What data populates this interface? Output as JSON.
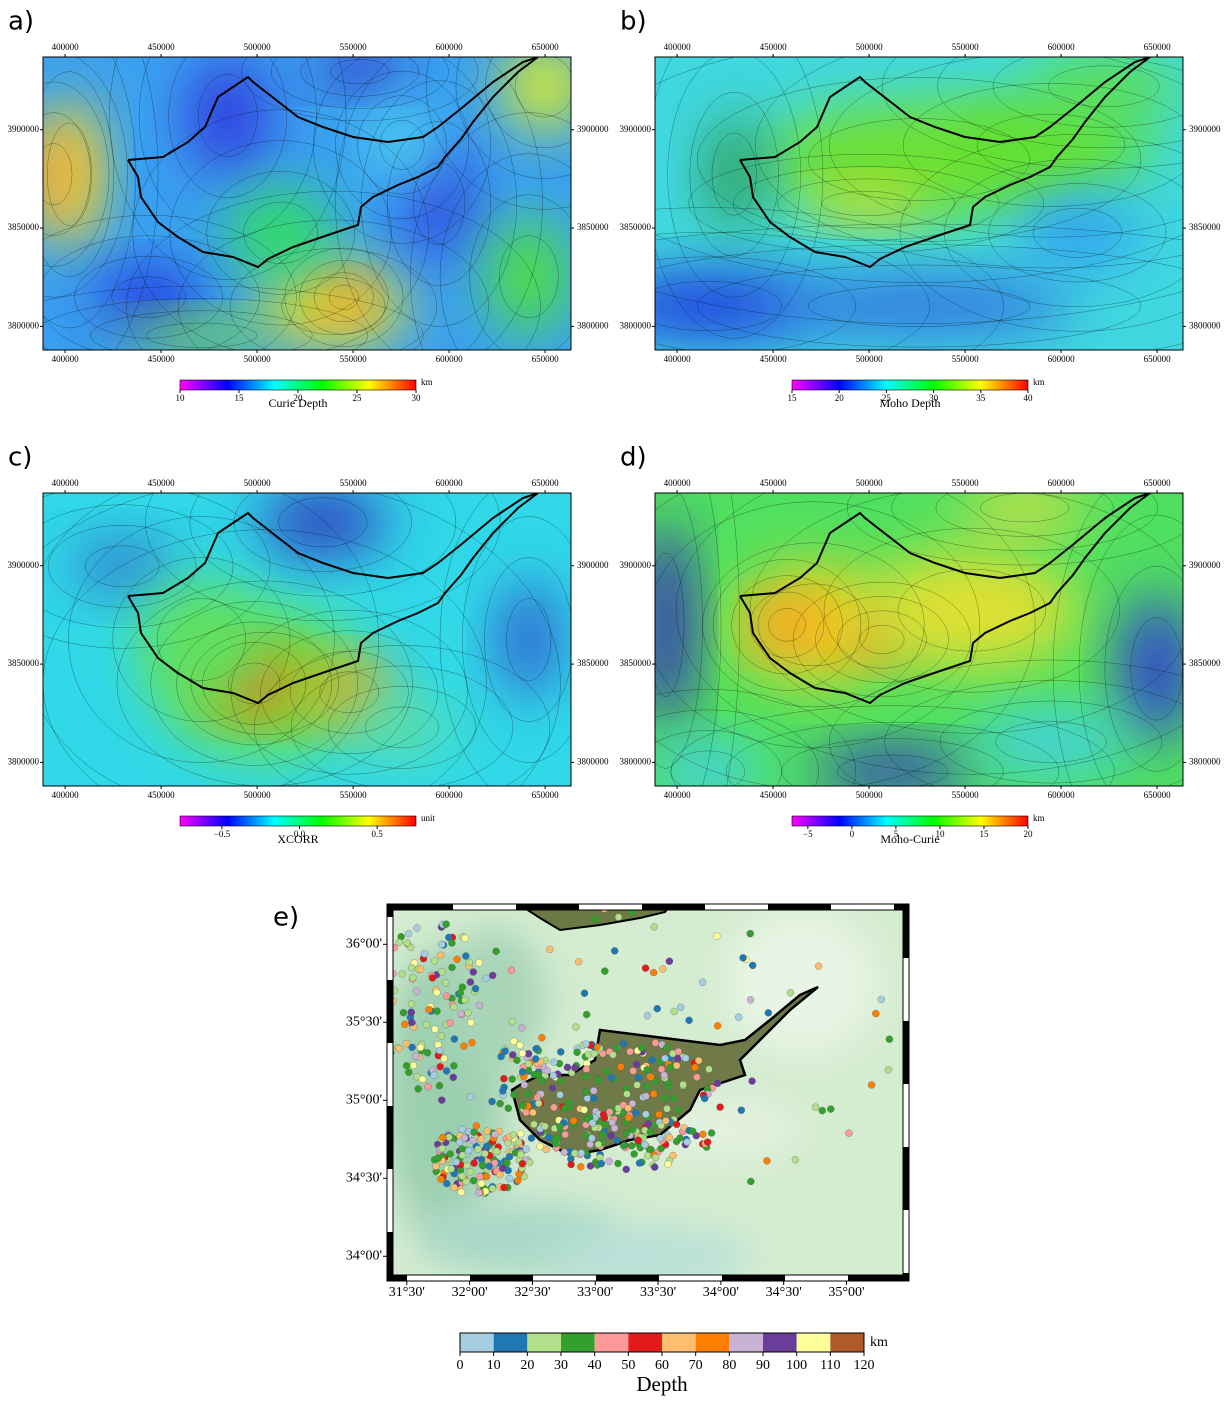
{
  "panels": [
    {
      "label": "a)",
      "xlim": [
        388500,
        663500
      ],
      "ylim": [
        3788000,
        3937000
      ],
      "xticks": [
        400000,
        450000,
        500000,
        550000,
        600000,
        650000
      ],
      "yticks": [
        3800000,
        3850000,
        3900000
      ],
      "colorbar": {
        "title": "Curie Depth",
        "unit": "km",
        "lim": [
          10,
          30
        ],
        "ticks": [
          10,
          15,
          20,
          25,
          30
        ],
        "colors": [
          "#ff00ff",
          "#0000ff",
          "#00ffff",
          "#00ff00",
          "#ffff00",
          "#ff0000"
        ]
      }
    },
    {
      "label": "b)",
      "xlim": [
        388500,
        663500
      ],
      "ylim": [
        3788000,
        3937000
      ],
      "xticks": [
        400000,
        450000,
        500000,
        550000,
        600000,
        650000
      ],
      "yticks": [
        3800000,
        3850000,
        3900000
      ],
      "colorbar": {
        "title": "Moho Depth",
        "unit": "km",
        "lim": [
          15,
          40
        ],
        "ticks": [
          15,
          20,
          25,
          30,
          35,
          40
        ],
        "colors": [
          "#ff00ff",
          "#0000ff",
          "#00ffff",
          "#00ff00",
          "#ffff00",
          "#ff0000"
        ]
      }
    },
    {
      "label": "c)",
      "xlim": [
        388500,
        663500
      ],
      "ylim": [
        3788000,
        3937000
      ],
      "xticks": [
        400000,
        450000,
        500000,
        550000,
        600000,
        650000
      ],
      "yticks": [
        3800000,
        3850000,
        3900000
      ],
      "colorbar": {
        "title": "XCORR",
        "unit": "unit",
        "lim": [
          -0.77,
          0.75
        ],
        "ticks": [
          {
            "value": -0.5,
            "label": "−0.5"
          },
          {
            "value": 0,
            "label": "0.0"
          },
          0.5
        ],
        "colors": [
          "#ff00ff",
          "#0000ff",
          "#00ffff",
          "#00ff00",
          "#ffff00",
          "#ff0000"
        ]
      }
    },
    {
      "label": "d)",
      "xlim": [
        388500,
        663500
      ],
      "ylim": [
        3788000,
        3937000
      ],
      "xticks": [
        400000,
        450000,
        500000,
        550000,
        600000,
        650000
      ],
      "yticks": [
        3800000,
        3850000,
        3900000
      ],
      "colorbar": {
        "title": "Moho-Curie",
        "unit": "km",
        "lim": [
          -6.8,
          20
        ],
        "ticks": [
          {
            "value": -5,
            "label": "−5"
          },
          0,
          5,
          10,
          15,
          20
        ],
        "colors": [
          "#ff00ff",
          "#0000ff",
          "#00ffff",
          "#00ff00",
          "#ffff00",
          "#ff0000"
        ]
      }
    }
  ],
  "map_e": {
    "label": "e)",
    "xlim": [
      31.39,
      35.45
    ],
    "ylim": [
      33.88,
      36.22
    ],
    "xticks": [
      {
        "value": 31.5,
        "label": "31°30'"
      },
      {
        "value": 32,
        "label": "32°00'"
      },
      {
        "value": 32.5,
        "label": "32°30'"
      },
      {
        "value": 33,
        "label": "33°00'"
      },
      {
        "value": 33.5,
        "label": "33°30'"
      },
      {
        "value": 34,
        "label": "34°00'"
      },
      {
        "value": 34.5,
        "label": "34°30'"
      },
      {
        "value": 35,
        "label": "35°00'"
      }
    ],
    "yticks": [
      {
        "value": 34,
        "label": "34°00'"
      },
      {
        "value": 34.5,
        "label": "34°30'"
      },
      {
        "value": 35,
        "label": "35°00'"
      },
      {
        "value": 35.5,
        "label": "35°30'"
      },
      {
        "value": 36,
        "label": "36°00'"
      }
    ],
    "colorbar": {
      "title": "Depth",
      "unit": "km",
      "ticks": [
        0,
        10,
        20,
        30,
        40,
        50,
        60,
        70,
        80,
        90,
        100,
        110,
        120
      ],
      "colors": [
        "#a6cee3",
        "#1f78b4",
        "#b2df8a",
        "#33a02c",
        "#fb9a99",
        "#e31a1c",
        "#fdbf6f",
        "#ff7f00",
        "#cab2d6",
        "#6a3d9a",
        "#ffff99",
        "#b15928"
      ]
    }
  }
}
